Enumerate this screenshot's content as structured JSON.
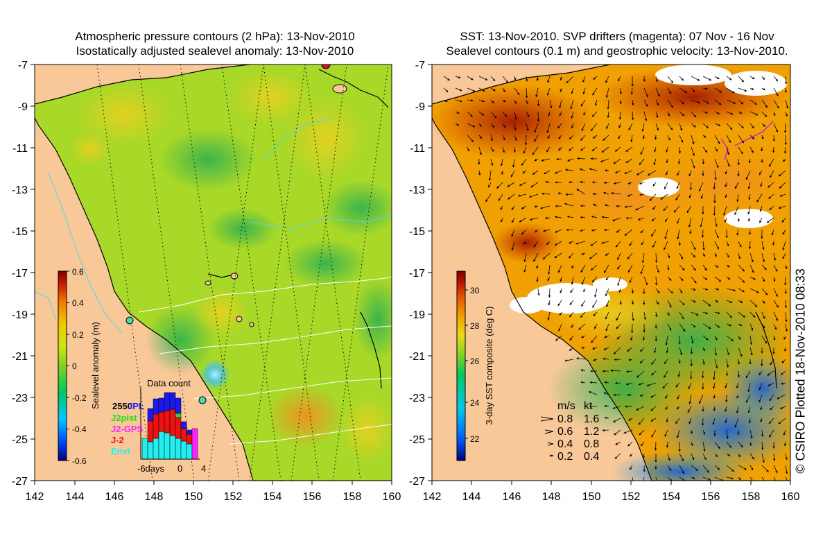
{
  "left_panel": {
    "title_line1": "Atmospheric pressure contours (2 hPa): 13-Nov-2010",
    "title_line2": "Isostatically adjusted sealevel anomaly: 13-Nov-2010",
    "colorbar": {
      "label": "Sealevel anomaly (m)",
      "ticks": [
        "0.6",
        "0.4",
        "0.2",
        "0",
        "-0.2",
        "-0.4",
        "-0.6"
      ]
    },
    "data_count": {
      "title": "Data count",
      "legend": [
        "JPL",
        "J2pist",
        "J2-GPS",
        "J-2",
        "Envi"
      ],
      "legend_colors": [
        "#1a1aee",
        "#22dd22",
        "#ff22ff",
        "#ee1111",
        "#22eeee"
      ],
      "count_label": "2550",
      "xtick_labels": [
        "-6days",
        "0",
        "4"
      ]
    }
  },
  "right_panel": {
    "title_line1": "SST: 13-Nov-2010. SVP drifters (magenta): 07 Nov - 16 Nov",
    "title_line2": "Sealevel contours (0.1 m) and geostrophic velocity: 13-Nov-2010.",
    "colorbar": {
      "label": "3-day SST composite (deg C)",
      "ticks": [
        "30",
        "28",
        "26",
        "24",
        "22"
      ]
    },
    "speed_legend": {
      "header_ms": "m/s",
      "header_kt": "kt",
      "rows": [
        {
          "ms": "0.8",
          "kt": "1.6"
        },
        {
          "ms": "0.6",
          "kt": "1.2"
        },
        {
          "ms": "0.4",
          "kt": "0.8"
        },
        {
          "ms": "0.2",
          "kt": "0.4"
        }
      ]
    }
  },
  "axes": {
    "y_ticks": [
      "-7",
      "-9",
      "-11",
      "-13",
      "-15",
      "-17",
      "-19",
      "-21",
      "-23",
      "-25",
      "-27"
    ],
    "x_ticks": [
      "142",
      "144",
      "146",
      "148",
      "150",
      "152",
      "154",
      "156",
      "158",
      "160"
    ]
  },
  "credit": "© CSIRO Plotted 18-Nov-2010 08:33",
  "colors": {
    "land": "#f8c898",
    "ssl_ramp": [
      "#00007f",
      "#0050ff",
      "#00c8ff",
      "#00c864",
      "#7ed21e",
      "#c8e614",
      "#f0c800",
      "#f07800",
      "#c81e00",
      "#800000"
    ],
    "sst_ramp": [
      "#00007f",
      "#0060ff",
      "#00c8e6",
      "#00c864",
      "#78d228",
      "#e6dc14",
      "#f0a000",
      "#e65a00",
      "#b41400",
      "#800000"
    ]
  }
}
